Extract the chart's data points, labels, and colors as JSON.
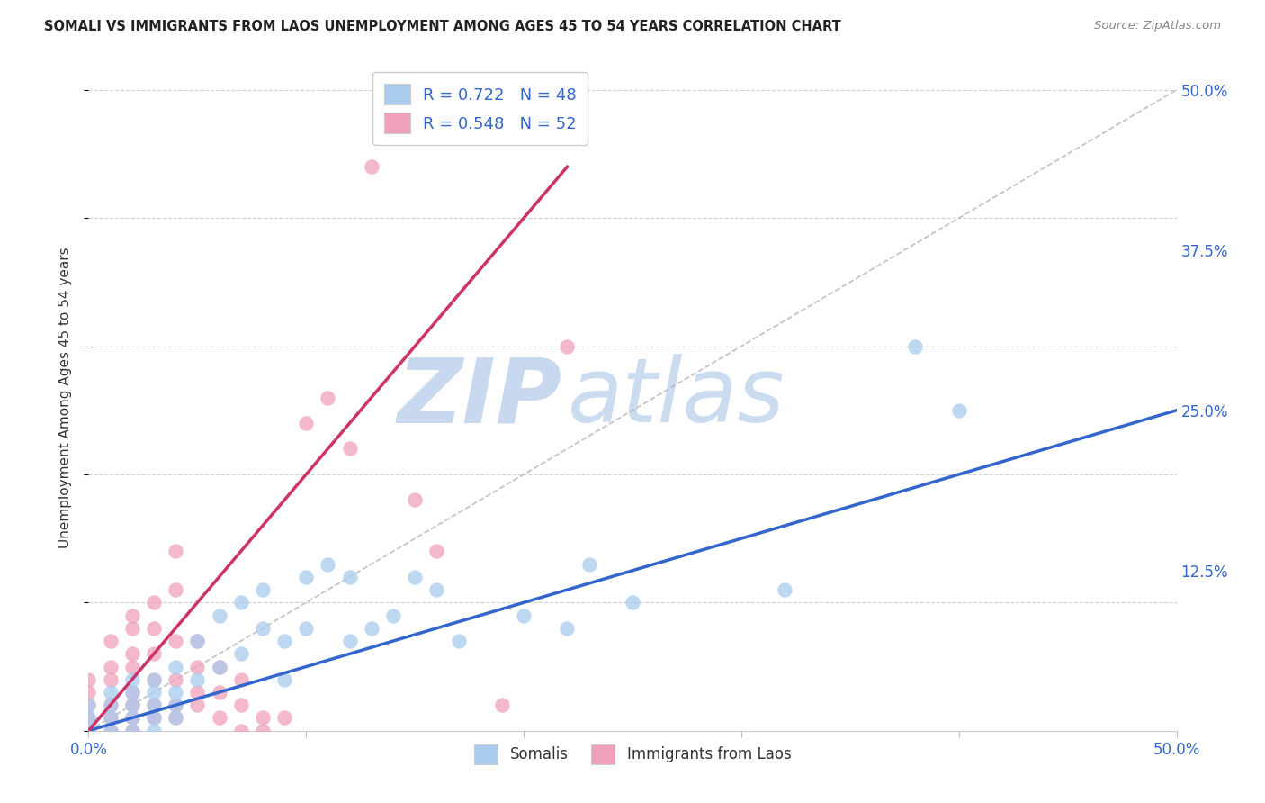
{
  "title": "SOMALI VS IMMIGRANTS FROM LAOS UNEMPLOYMENT AMONG AGES 45 TO 54 YEARS CORRELATION CHART",
  "source": "Source: ZipAtlas.com",
  "ylabel": "Unemployment Among Ages 45 to 54 years",
  "xlim": [
    0.0,
    0.5
  ],
  "ylim": [
    0.0,
    0.52
  ],
  "somali_R": 0.722,
  "somali_N": 48,
  "laos_R": 0.548,
  "laos_N": 52,
  "somali_color": "#aaccee",
  "laos_color": "#f0a0b8",
  "somali_line_color": "#3366cc",
  "laos_line_color": "#cc3366",
  "diagonal_color": "#bbbbbb",
  "watermark_ZIP_color": "#c8d8ee",
  "watermark_atlas_color": "#b0c8e8",
  "grid_color": "#cccccc",
  "background_color": "#ffffff",
  "somali_x": [
    0.0,
    0.0,
    0.0,
    0.01,
    0.01,
    0.01,
    0.01,
    0.02,
    0.02,
    0.02,
    0.02,
    0.02,
    0.03,
    0.03,
    0.03,
    0.03,
    0.03,
    0.04,
    0.04,
    0.04,
    0.04,
    0.05,
    0.05,
    0.06,
    0.06,
    0.07,
    0.07,
    0.08,
    0.08,
    0.09,
    0.09,
    0.1,
    0.1,
    0.11,
    0.12,
    0.12,
    0.13,
    0.14,
    0.15,
    0.16,
    0.17,
    0.2,
    0.22,
    0.23,
    0.25,
    0.32,
    0.38,
    0.4
  ],
  "somali_y": [
    0.01,
    0.02,
    0.0,
    0.01,
    0.03,
    0.02,
    0.0,
    0.01,
    0.03,
    0.02,
    0.04,
    0.0,
    0.02,
    0.04,
    0.01,
    0.03,
    0.0,
    0.02,
    0.05,
    0.01,
    0.03,
    0.04,
    0.07,
    0.05,
    0.09,
    0.06,
    0.1,
    0.08,
    0.11,
    0.07,
    0.04,
    0.08,
    0.12,
    0.13,
    0.07,
    0.12,
    0.08,
    0.09,
    0.12,
    0.11,
    0.07,
    0.09,
    0.08,
    0.13,
    0.1,
    0.11,
    0.3,
    0.25
  ],
  "laos_x": [
    0.0,
    0.0,
    0.0,
    0.0,
    0.0,
    0.01,
    0.01,
    0.01,
    0.01,
    0.01,
    0.01,
    0.02,
    0.02,
    0.02,
    0.02,
    0.02,
    0.02,
    0.02,
    0.02,
    0.03,
    0.03,
    0.03,
    0.03,
    0.03,
    0.03,
    0.04,
    0.04,
    0.04,
    0.04,
    0.04,
    0.04,
    0.05,
    0.05,
    0.05,
    0.05,
    0.06,
    0.06,
    0.06,
    0.07,
    0.07,
    0.07,
    0.08,
    0.08,
    0.09,
    0.1,
    0.11,
    0.12,
    0.13,
    0.15,
    0.16,
    0.19,
    0.22
  ],
  "laos_y": [
    0.0,
    0.01,
    0.02,
    0.03,
    0.04,
    0.0,
    0.01,
    0.02,
    0.04,
    0.05,
    0.07,
    0.0,
    0.01,
    0.02,
    0.03,
    0.05,
    0.06,
    0.08,
    0.09,
    0.01,
    0.02,
    0.04,
    0.06,
    0.08,
    0.1,
    0.01,
    0.02,
    0.04,
    0.07,
    0.11,
    0.14,
    0.02,
    0.03,
    0.05,
    0.07,
    0.01,
    0.03,
    0.05,
    0.0,
    0.02,
    0.04,
    0.0,
    0.01,
    0.01,
    0.24,
    0.26,
    0.22,
    0.44,
    0.18,
    0.14,
    0.02,
    0.3
  ],
  "somali_line_x": [
    0.0,
    0.5
  ],
  "somali_line_y": [
    0.0,
    0.25
  ],
  "laos_line_x": [
    0.0,
    0.22
  ],
  "laos_line_y": [
    0.0,
    0.44
  ]
}
